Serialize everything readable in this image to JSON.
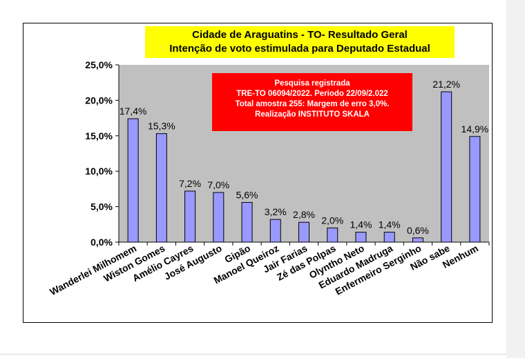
{
  "chart_data": {
    "type": "bar",
    "title": "Cidade de Araguatins - TO- Resultado Geral",
    "subtitle": "Intenção de voto estimulada para Deputado Estadual",
    "note_lines": [
      "Pesquisa  registrada",
      "TRE-TO 06094/2022. Periodo 22/09/2.022",
      "Total amostra 255: Margem de erro 3,0%.",
      "Realização INSTITUTO SKALA"
    ],
    "categories": [
      "Wanderlei Milhomem",
      "Wiston Gomes",
      "Amélio Cayres",
      "José Augusto",
      "Gipão",
      "Manoel Queiroz",
      "Jair Farias",
      "Zé das Polpas",
      "Olyntho Neto",
      "Eduardo Madruga",
      "Enfermeiro Serginho",
      "Não sabe",
      "Nenhum"
    ],
    "values": [
      17.4,
      15.3,
      7.2,
      7.0,
      5.6,
      3.2,
      2.8,
      2.0,
      1.4,
      1.4,
      0.6,
      21.2,
      14.9
    ],
    "value_labels": [
      "17,4%",
      "15,3%",
      "7,2%",
      "7,0%",
      "5,6%",
      "3,2%",
      "2,8%",
      "2,0%",
      "1,4%",
      "1,4%",
      "0,6%",
      "21,2%",
      "14,9%"
    ],
    "y_ticks": [
      0,
      5,
      10,
      15,
      20,
      25
    ],
    "y_tick_labels": [
      "0,0%",
      "5,0%",
      "10,0%",
      "15,0%",
      "20,0%",
      "25,0%"
    ],
    "ylim": [
      0,
      25
    ],
    "grid": false,
    "legend": "none",
    "colors": {
      "plot_bg": "#c0c0c0",
      "bar_fill": "#9999ff",
      "bar_stroke": "#000000",
      "title_bg": "#ffff00",
      "note_bg": "#ff0000",
      "note_text": "#ffffff"
    }
  }
}
